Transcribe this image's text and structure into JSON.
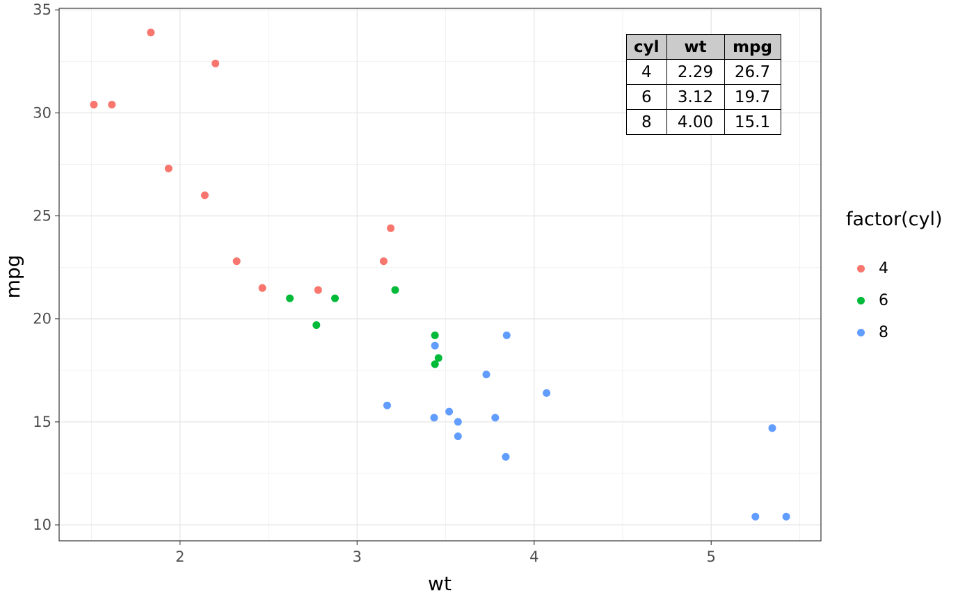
{
  "chart_data": {
    "type": "scatter",
    "title": "",
    "xlabel": "wt",
    "ylabel": "mpg",
    "legend_title": "factor(cyl)",
    "legend_position": "right",
    "grid": true,
    "xlim": [
      1.317,
      5.62
    ],
    "ylim": [
      9.225,
      35.075
    ],
    "x_ticks": [
      2,
      3,
      4,
      5
    ],
    "x_tick_labels": [
      "2",
      "3",
      "4",
      "5"
    ],
    "y_ticks": [
      10,
      15,
      20,
      25,
      30,
      35
    ],
    "y_tick_labels": [
      "10",
      "15",
      "20",
      "25",
      "30",
      "35"
    ],
    "x_minor_ticks": [
      1.5,
      2.5,
      3.5,
      4.5,
      5.5
    ],
    "y_minor_ticks": [
      12.5,
      17.5,
      22.5,
      27.5,
      32.5
    ],
    "series": [
      {
        "name": "4",
        "color": "#F8766D",
        "points": [
          [
            2.32,
            22.8
          ],
          [
            3.19,
            24.4
          ],
          [
            3.15,
            22.8
          ],
          [
            2.2,
            32.4
          ],
          [
            1.615,
            30.4
          ],
          [
            1.835,
            33.9
          ],
          [
            2.465,
            21.5
          ],
          [
            1.935,
            27.3
          ],
          [
            2.14,
            26.0
          ],
          [
            1.513,
            30.4
          ],
          [
            2.78,
            21.4
          ]
        ]
      },
      {
        "name": "6",
        "color": "#00BA38",
        "points": [
          [
            2.62,
            21.0
          ],
          [
            2.875,
            21.0
          ],
          [
            3.215,
            21.4
          ],
          [
            3.46,
            18.1
          ],
          [
            3.44,
            19.2
          ],
          [
            3.44,
            17.8
          ],
          [
            2.77,
            19.7
          ]
        ]
      },
      {
        "name": "8",
        "color": "#619CFF",
        "points": [
          [
            3.44,
            18.7
          ],
          [
            3.57,
            14.3
          ],
          [
            4.07,
            16.4
          ],
          [
            3.73,
            17.3
          ],
          [
            3.78,
            15.2
          ],
          [
            5.25,
            10.4
          ],
          [
            5.424,
            10.4
          ],
          [
            5.345,
            14.7
          ],
          [
            3.52,
            15.5
          ],
          [
            3.435,
            15.2
          ],
          [
            3.84,
            13.3
          ],
          [
            3.845,
            19.2
          ],
          [
            3.17,
            15.8
          ],
          [
            3.57,
            15.0
          ]
        ]
      }
    ]
  },
  "inset_table": {
    "headers": [
      "cyl",
      "wt",
      "mpg"
    ],
    "rows": [
      [
        "4",
        "2.29",
        "26.7"
      ],
      [
        "6",
        "3.12",
        "19.7"
      ],
      [
        "8",
        "4.00",
        "15.1"
      ]
    ]
  },
  "legend": {
    "title": "factor(cyl)",
    "items": [
      {
        "label": "4",
        "color": "#F8766D"
      },
      {
        "label": "6",
        "color": "#00BA38"
      },
      {
        "label": "8",
        "color": "#619CFF"
      }
    ]
  },
  "style": {
    "panel_border": "#333333",
    "grid_major": "#E6E6E6",
    "grid_minor": "#F0F0F0",
    "tick_color": "#333333",
    "tick_label_color": "#4D4D4D",
    "point_radius": 5.5,
    "table_header_bg": "#CBCBCB"
  }
}
